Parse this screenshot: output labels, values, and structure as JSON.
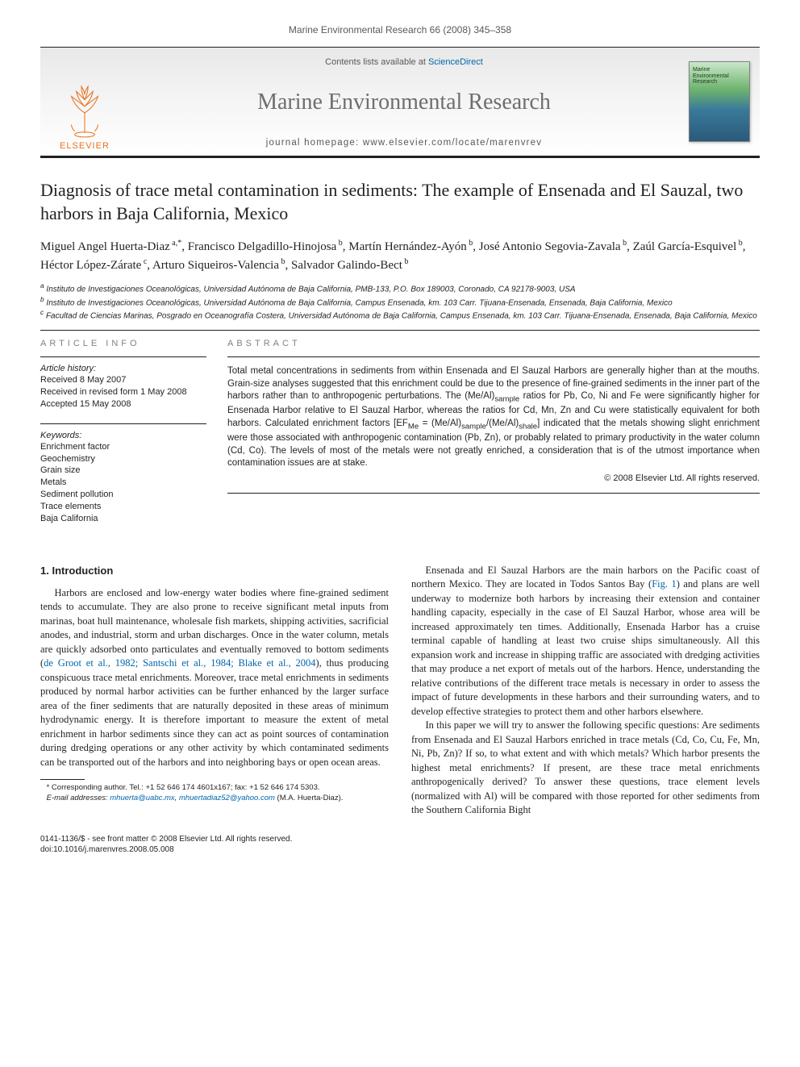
{
  "runningHead": "Marine Environmental Research 66 (2008) 345–358",
  "masthead": {
    "publisher": "ELSEVIER",
    "contentsLine_pre": "Contents lists available at ",
    "contentsLine_link": "ScienceDirect",
    "journalTitle": "Marine Environmental Research",
    "homepage_pre": "journal homepage: ",
    "homepage_url": "www.elsevier.com/locate/marenvrev",
    "coverText": "Marine Environmental Research"
  },
  "article": {
    "title": "Diagnosis of trace metal contamination in sediments: The example of Ensenada and El Sauzal, two harbors in Baja California, Mexico",
    "authorsHtml": "Miguel Angel Huerta-Diaz<sup> a,*</sup>, Francisco Delgadillo-Hinojosa<sup> b</sup>, Martín Hernández-Ayón<sup> b</sup>, José Antonio Segovia-Zavala<sup> b</sup>, Zaúl García-Esquivel<sup> b</sup>, Héctor López-Zárate<sup> c</sup>, Arturo Siqueiros-Valencia<sup> b</sup>, Salvador Galindo-Bect<sup> b</sup>",
    "affiliations": [
      "<sup>a</sup> Instituto de Investigaciones Oceanológicas, Universidad Autónoma de Baja California, PMB-133, P.O. Box 189003, Coronado, CA 92178-9003, USA",
      "<sup>b</sup> Instituto de Investigaciones Oceanológicas, Universidad Autónoma de Baja California, Campus Ensenada, km. 103 Carr. Tijuana-Ensenada, Ensenada, Baja California, Mexico",
      "<sup>c</sup> Facultad de Ciencias Marinas, Posgrado en Oceanografía Costera, Universidad Autónoma de Baja California, Campus Ensenada, km. 103 Carr. Tijuana-Ensenada, Ensenada, Baja California, Mexico"
    ]
  },
  "info": {
    "label": "article info",
    "historyHead": "Article history:",
    "history": [
      "Received 8 May 2007",
      "Received in revised form 1 May 2008",
      "Accepted 15 May 2008"
    ],
    "keywordsHead": "Keywords:",
    "keywords": [
      "Enrichment factor",
      "Geochemistry",
      "Grain size",
      "Metals",
      "Sediment pollution",
      "Trace elements",
      "Baja California"
    ]
  },
  "abstract": {
    "label": "abstract",
    "textHtml": "Total metal concentrations in sediments from within Ensenada and El Sauzal Harbors are generally higher than at the mouths. Grain-size analyses suggested that this enrichment could be due to the presence of fine-grained sediments in the inner part of the harbors rather than to anthropogenic perturbations. The (Me/Al)<sub>sample</sub> ratios for Pb, Co, Ni and Fe were significantly higher for Ensenada Harbor relative to El Sauzal Harbor, whereas the ratios for Cd, Mn, Zn and Cu were statistically equivalent for both harbors. Calculated enrichment factors [EF<sub>Me</sub> = (Me/Al)<sub>sample</sub>/(Me/Al)<sub>shale</sub>] indicated that the metals showing slight enrichment were those associated with anthropogenic contamination (Pb, Zn), or probably related to primary productivity in the water column (Cd, Co). The levels of most of the metals were not greatly enriched, a consideration that is of the utmost importance when contamination issues are at stake.",
    "copyright": "© 2008 Elsevier Ltd. All rights reserved."
  },
  "body": {
    "heading1": "1. Introduction",
    "p1": "Harbors are enclosed and low-energy water bodies where fine-grained sediment tends to accumulate. They are also prone to receive significant metal inputs from marinas, boat hull maintenance, wholesale fish markets, shipping activities, sacrificial anodes, and industrial, storm and urban discharges. Once in the water column, metals are quickly adsorbed onto particulates and eventually removed to bottom sediments (<span class=\"link\">de Groot et al., 1982; Santschi et al., 1984; Blake et al., 2004</span>), thus producing conspicuous trace metal enrichments. Moreover, trace metal enrichments in sediments produced by normal harbor activities can be further enhanced by the larger surface area of the finer sediments that are naturally deposited in these areas of minimum hydrodynamic energy. It is therefore important to measure the extent of metal enrichment in harbor sediments since they can act as point sources of contamination during dredging operations or any other activity by which contaminated sediments can be transported out of the harbors and into neighboring bays or open ocean areas.",
    "p2": "Ensenada and El Sauzal Harbors are the main harbors on the Pacific coast of northern Mexico. They are located in Todos Santos Bay (<span class=\"link\">Fig. 1</span>) and plans are well underway to modernize both harbors by increasing their extension and container handling capacity, especially in the case of El Sauzal Harbor, whose area will be increased approximately ten times. Additionally, Ensenada Harbor has a cruise terminal capable of handling at least two cruise ships simultaneously. All this expansion work and increase in shipping traffic are associated with dredging activities that may produce a net export of metals out of the harbors. Hence, understanding the relative contributions of the different trace metals is necessary in order to assess the impact of future developments in these harbors and their surrounding waters, and to develop effective strategies to protect them and other harbors elsewhere.",
    "p3": "In this paper we will try to answer the following specific questions: Are sediments from Ensenada and El Sauzal Harbors enriched in trace metals (Cd, Co, Cu, Fe, Mn, Ni, Pb, Zn)? If so, to what extent and with which metals? Which harbor presents the highest metal enrichments? If present, are these trace metal enrichments anthropogenically derived? To answer these questions, trace element levels (normalized with Al) will be compared with those reported for other sediments from the Southern California Bight"
  },
  "footnote": {
    "corresponding": "* Corresponding author. Tel.: +1 52 646 174 4601x167; fax: +1 52 646 174 5303.",
    "emails_pre": "E-mail addresses: ",
    "email1": "mhuerta@uabc.mx",
    "emails_mid": ", ",
    "email2": "mhuertadiaz52@yahoo.com",
    "emails_post": " (M.A. Huerta-Diaz)."
  },
  "bottom": {
    "line1": "0141-1136/$ - see front matter © 2008 Elsevier Ltd. All rights reserved.",
    "line2": "doi:10.1016/j.marenvres.2008.05.008"
  },
  "colors": {
    "text": "#231f20",
    "muted": "#58595b",
    "grayTitle": "#6d6e71",
    "orange": "#e9711c",
    "link": "#0066aa"
  },
  "fonts": {
    "serif": "Georgia, serif",
    "sans": "Arial, sans-serif",
    "title_size_pt": 22,
    "journal_size_pt": 28,
    "body_size_pt": 12.5,
    "abstract_size_pt": 11.5,
    "info_size_pt": 11,
    "affil_size_pt": 10
  }
}
